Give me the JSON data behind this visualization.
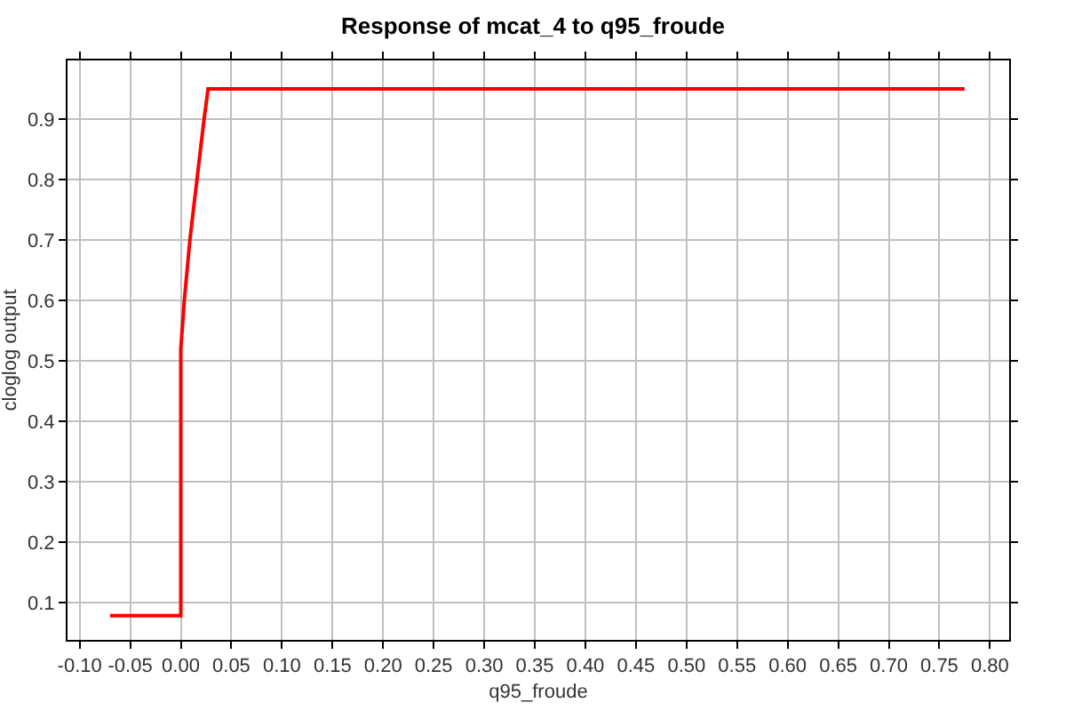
{
  "chart_data": {
    "type": "line",
    "title": "Response of mcat_4 to q95_froude",
    "xlabel": "q95_froude",
    "ylabel": "cloglog output",
    "x": [
      -0.07,
      0,
      0,
      0.0035,
      0.009,
      0.016,
      0.023,
      0.027,
      0.775
    ],
    "values": [
      0.078,
      0.078,
      0.52,
      0.6,
      0.7,
      0.8,
      0.9,
      0.95,
      0.95
    ],
    "color": "#ff0000",
    "xlim": [
      -0.112,
      0.819
    ],
    "ylim": [
      0.038,
      0.997
    ],
    "xticks": [
      {
        "value": -0.1,
        "label": "-0.10"
      },
      {
        "value": -0.05,
        "label": "-0.05"
      },
      {
        "value": 0,
        "label": "0.00"
      },
      {
        "value": 0.05,
        "label": "0.05"
      },
      {
        "value": 0.1,
        "label": "0.10"
      },
      {
        "value": 0.15,
        "label": "0.15"
      },
      {
        "value": 0.2,
        "label": "0.20"
      },
      {
        "value": 0.25,
        "label": "0.25"
      },
      {
        "value": 0.3,
        "label": "0.30"
      },
      {
        "value": 0.35,
        "label": "0.35"
      },
      {
        "value": 0.4,
        "label": "0.40"
      },
      {
        "value": 0.45,
        "label": "0.45"
      },
      {
        "value": 0.5,
        "label": "0.50"
      },
      {
        "value": 0.55,
        "label": "0.55"
      },
      {
        "value": 0.6,
        "label": "0.60"
      },
      {
        "value": 0.65,
        "label": "0.65"
      },
      {
        "value": 0.7,
        "label": "0.70"
      },
      {
        "value": 0.75,
        "label": "0.75"
      },
      {
        "value": 0.8,
        "label": "0.80"
      }
    ],
    "yticks": [
      0.1,
      0.2,
      0.3,
      0.4,
      0.5,
      0.6,
      0.7,
      0.8,
      0.9
    ],
    "grid": true
  }
}
